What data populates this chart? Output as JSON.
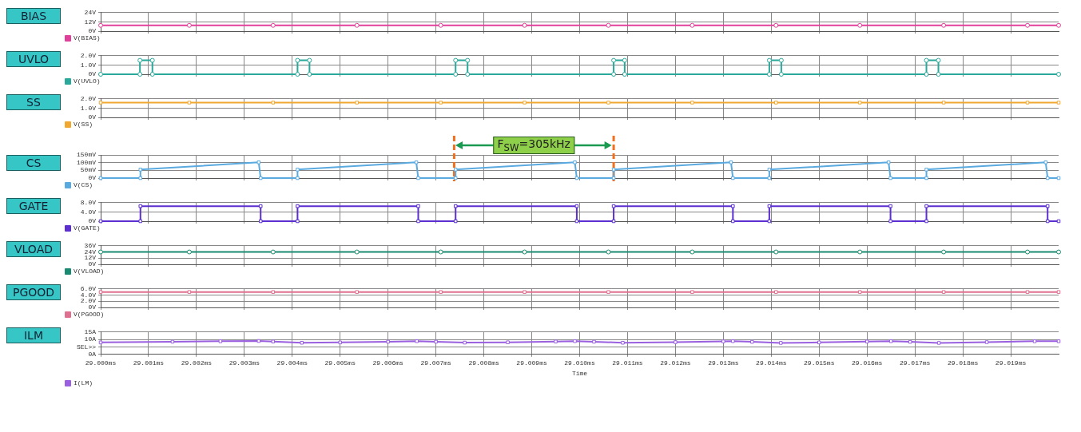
{
  "chart_data": [
    {
      "type": "line",
      "title": "BIAS",
      "legend": "bottom left",
      "grid": true,
      "tick_labels": "y",
      "marker": "circle",
      "xlim": [
        29,
        29.02
      ],
      "xticks": [
        29,
        29.001,
        29.002,
        29.003,
        29.004,
        29.005,
        29.006,
        29.007,
        29.008,
        29.009,
        29.01,
        29.011,
        29.012,
        29.013,
        29.014,
        29.015,
        29.016,
        29.017,
        29.018,
        29.019
      ],
      "ylim": [
        0,
        24
      ],
      "yticks": [
        {
          "value": 0,
          "label": "0V"
        },
        {
          "value": 12,
          "label": "12V"
        },
        {
          "value": 24,
          "label": "24V"
        }
      ],
      "x": [
        29,
        29.00185,
        29.0036,
        29.00535,
        29.0071,
        29.00885,
        29.0106,
        29.01235,
        29.0141,
        29.01585,
        29.0176,
        29.01935,
        29.02
      ],
      "series": [
        {
          "name": "V(BIAS)",
          "color": "#e0409a",
          "values": [
            7.5,
            7.5,
            7.5,
            7.5,
            7.5,
            7.5,
            7.5,
            7.5,
            7.5,
            7.5,
            7.5,
            7.5,
            7.5
          ]
        }
      ]
    },
    {
      "type": "line",
      "title": "UVLO",
      "legend": "bottom left",
      "grid": true,
      "tick_labels": "y",
      "marker": "circle",
      "xlim": [
        29,
        29.02
      ],
      "xticks": [
        29,
        29.001,
        29.002,
        29.003,
        29.004,
        29.005,
        29.006,
        29.007,
        29.008,
        29.009,
        29.01,
        29.011,
        29.012,
        29.013,
        29.014,
        29.015,
        29.016,
        29.017,
        29.018,
        29.019
      ],
      "ylim": [
        0,
        2
      ],
      "yticks": [
        {
          "value": 0,
          "label": "0V"
        },
        {
          "value": 1,
          "label": "1.0V"
        },
        {
          "value": 2,
          "label": "2.0V"
        }
      ],
      "x": [
        29,
        29.00082,
        29.00082,
        29.00108,
        29.00108,
        29.00411,
        29.00411,
        29.00436,
        29.00436,
        29.00741,
        29.00741,
        29.00766,
        29.00766,
        29.01071,
        29.01071,
        29.01094,
        29.01094,
        29.01396,
        29.01396,
        29.01421,
        29.01421,
        29.01724,
        29.01724,
        29.01749,
        29.01749,
        29.02
      ],
      "series": [
        {
          "name": "V(UVLO)",
          "color": "#2aa89a",
          "values": [
            0,
            0,
            1.5,
            1.5,
            0,
            0,
            1.5,
            1.5,
            0,
            0,
            1.5,
            1.5,
            0,
            0,
            1.5,
            1.5,
            0,
            0,
            1.5,
            1.5,
            0,
            0,
            1.5,
            1.5,
            0,
            0
          ]
        }
      ]
    },
    {
      "type": "line",
      "title": "SS",
      "legend": "bottom left",
      "grid": true,
      "tick_labels": "y",
      "marker": "square",
      "xlim": [
        29,
        29.02
      ],
      "xticks": [
        29,
        29.001,
        29.002,
        29.003,
        29.004,
        29.005,
        29.006,
        29.007,
        29.008,
        29.009,
        29.01,
        29.011,
        29.012,
        29.013,
        29.014,
        29.015,
        29.016,
        29.017,
        29.018,
        29.019
      ],
      "ylim": [
        0,
        2
      ],
      "yticks": [
        {
          "value": 0,
          "label": "0V"
        },
        {
          "value": 1,
          "label": "1.0V"
        },
        {
          "value": 2,
          "label": "2.0V"
        }
      ],
      "x": [
        29,
        29.00185,
        29.0036,
        29.00535,
        29.0071,
        29.00885,
        29.0106,
        29.01235,
        29.0141,
        29.01585,
        29.0176,
        29.01935,
        29.02
      ],
      "series": [
        {
          "name": "V(SS)",
          "color": "#f0a830",
          "values": [
            1.6,
            1.6,
            1.6,
            1.6,
            1.6,
            1.6,
            1.6,
            1.6,
            1.6,
            1.6,
            1.6,
            1.6,
            1.6
          ]
        }
      ]
    },
    {
      "type": "line",
      "title": "CS",
      "legend": "bottom left",
      "grid": true,
      "tick_labels": "y",
      "marker": "square",
      "xlim": [
        29,
        29.02
      ],
      "xticks": [
        29,
        29.001,
        29.002,
        29.003,
        29.004,
        29.005,
        29.006,
        29.007,
        29.008,
        29.009,
        29.01,
        29.011,
        29.012,
        29.013,
        29.014,
        29.015,
        29.016,
        29.017,
        29.018,
        29.019
      ],
      "ylim": [
        0,
        150
      ],
      "yticks": [
        {
          "value": 0,
          "label": "0V"
        },
        {
          "value": 50,
          "label": "50mV"
        },
        {
          "value": 100,
          "label": "100mV"
        },
        {
          "value": 150,
          "label": "150mV"
        }
      ],
      "x": [
        29,
        29.00083,
        29.00083,
        29.0033,
        29.00334,
        29.00411,
        29.00411,
        29.00659,
        29.00663,
        29.00741,
        29.00741,
        29.0099,
        29.00994,
        29.01071,
        29.01071,
        29.01316,
        29.0132,
        29.01396,
        29.01396,
        29.01645,
        29.01649,
        29.01724,
        29.01724,
        29.01973,
        29.01977,
        29.02
      ],
      "series": [
        {
          "name": "V(CS)",
          "color": "#5aaae0",
          "values": [
            0,
            0,
            55,
            102,
            0,
            0,
            55,
            102,
            0,
            0,
            55,
            102,
            0,
            0,
            55,
            102,
            0,
            0,
            55,
            102,
            0,
            0,
            55,
            102,
            0,
            0
          ]
        }
      ],
      "ref_lines": [
        {
          "axis": "x",
          "value": 29.00738,
          "color": "#f07020",
          "line_style": "dashed"
        },
        {
          "axis": "x",
          "value": 29.01071,
          "color": "#f07020",
          "line_style": "dashed"
        }
      ],
      "annotations": [
        "F$_{SW}$=305kHz"
      ]
    },
    {
      "type": "line",
      "title": "GATE",
      "legend": "bottom left",
      "grid": true,
      "tick_labels": "y",
      "marker": "square",
      "xlim": [
        29,
        29.02
      ],
      "xticks": [
        29,
        29.001,
        29.002,
        29.003,
        29.004,
        29.005,
        29.006,
        29.007,
        29.008,
        29.009,
        29.01,
        29.011,
        29.012,
        29.013,
        29.014,
        29.015,
        29.016,
        29.017,
        29.018,
        29.019
      ],
      "ylim": [
        0,
        8
      ],
      "yticks": [
        {
          "value": 0,
          "label": "0V"
        },
        {
          "value": 4,
          "label": "4.0V"
        },
        {
          "value": 8,
          "label": "8.0V"
        }
      ],
      "x": [
        29,
        29.00083,
        29.00083,
        29.00334,
        29.00334,
        29.00411,
        29.00411,
        29.00663,
        29.00663,
        29.00741,
        29.00741,
        29.00994,
        29.00994,
        29.01071,
        29.01071,
        29.0132,
        29.0132,
        29.01396,
        29.01396,
        29.01649,
        29.01649,
        29.01724,
        29.01724,
        29.01977,
        29.01977,
        29.02
      ],
      "series": [
        {
          "name": "V(GATE)",
          "color": "#5b2fd0",
          "values": [
            0,
            0,
            6.5,
            6.5,
            0,
            0,
            6.5,
            6.5,
            0,
            0,
            6.5,
            6.5,
            0,
            0,
            6.5,
            6.5,
            0,
            0,
            6.5,
            6.5,
            0,
            0,
            6.5,
            6.5,
            0,
            0
          ]
        }
      ]
    },
    {
      "type": "line",
      "title": "VLOAD",
      "legend": "bottom left",
      "grid": true,
      "tick_labels": "y",
      "marker": "circle",
      "xlim": [
        29,
        29.02
      ],
      "xticks": [
        29,
        29.001,
        29.002,
        29.003,
        29.004,
        29.005,
        29.006,
        29.007,
        29.008,
        29.009,
        29.01,
        29.011,
        29.012,
        29.013,
        29.014,
        29.015,
        29.016,
        29.017,
        29.018,
        29.019
      ],
      "ylim": [
        0,
        36
      ],
      "yticks": [
        {
          "value": 0,
          "label": "0V"
        },
        {
          "value": 12,
          "label": "12V"
        },
        {
          "value": 24,
          "label": "24V"
        },
        {
          "value": 36,
          "label": "36V"
        }
      ],
      "x": [
        29,
        29.00185,
        29.0036,
        29.00535,
        29.0071,
        29.00885,
        29.0106,
        29.01235,
        29.0141,
        29.01585,
        29.0176,
        29.01935,
        29.02
      ],
      "series": [
        {
          "name": "V(VLOAD)",
          "color": "#1a8a70",
          "values": [
            24,
            24,
            24,
            24,
            24,
            24,
            24,
            24,
            24,
            24,
            24,
            24,
            24
          ]
        }
      ]
    },
    {
      "type": "line",
      "title": "PGOOD",
      "legend": "bottom left",
      "grid": true,
      "tick_labels": "y",
      "marker": "square",
      "xlim": [
        29,
        29.02
      ],
      "xticks": [
        29,
        29.001,
        29.002,
        29.003,
        29.004,
        29.005,
        29.006,
        29.007,
        29.008,
        29.009,
        29.01,
        29.011,
        29.012,
        29.013,
        29.014,
        29.015,
        29.016,
        29.017,
        29.018,
        29.019
      ],
      "ylim": [
        0,
        6
      ],
      "yticks": [
        {
          "value": 0,
          "label": "0V"
        },
        {
          "value": 2,
          "label": "2.0V"
        },
        {
          "value": 4,
          "label": "4.0V"
        },
        {
          "value": 6,
          "label": "6.0V"
        }
      ],
      "x": [
        29,
        29.00185,
        29.0036,
        29.00535,
        29.0071,
        29.00885,
        29.0106,
        29.01235,
        29.0141,
        29.01585,
        29.0176,
        29.01935,
        29.02
      ],
      "series": [
        {
          "name": "V(PGOOD)",
          "color": "#e07090",
          "values": [
            5,
            5,
            5,
            5,
            5,
            5,
            5,
            5,
            5,
            5,
            5,
            5,
            5
          ]
        }
      ]
    },
    {
      "type": "line",
      "title": "ILM",
      "legend": "bottom left",
      "grid": true,
      "marker": "square",
      "xlabel": "Time",
      "xlim": [
        29,
        29.02
      ],
      "xticks": [
        {
          "value": 29,
          "label": "29.000ms"
        },
        {
          "value": 29.001,
          "label": "29.001ms"
        },
        {
          "value": 29.002,
          "label": "29.002ms"
        },
        {
          "value": 29.003,
          "label": "29.003ms"
        },
        {
          "value": 29.004,
          "label": "29.004ms"
        },
        {
          "value": 29.005,
          "label": "29.005ms"
        },
        {
          "value": 29.006,
          "label": "29.006ms"
        },
        {
          "value": 29.007,
          "label": "29.007ms"
        },
        {
          "value": 29.008,
          "label": "29.008ms"
        },
        {
          "value": 29.009,
          "label": "29.009ms"
        },
        {
          "value": 29.01,
          "label": "29.010ms"
        },
        {
          "value": 29.011,
          "label": "29.011ms"
        },
        {
          "value": 29.012,
          "label": "29.012ms"
        },
        {
          "value": 29.013,
          "label": "29.013ms"
        },
        {
          "value": 29.014,
          "label": "29.014ms"
        },
        {
          "value": 29.015,
          "label": "29.015ms"
        },
        {
          "value": 29.016,
          "label": "29.016ms"
        },
        {
          "value": 29.017,
          "label": "29.017ms"
        },
        {
          "value": 29.018,
          "label": "29.018ms"
        },
        {
          "value": 29.019,
          "label": "29.019ms"
        }
      ],
      "ylim": [
        0,
        15
      ],
      "yticks": [
        {
          "value": 0,
          "label": "0A"
        },
        {
          "value": 5,
          "label": "SEL>>"
        },
        {
          "value": 10,
          "label": "10A"
        },
        {
          "value": 15,
          "label": "15A"
        }
      ],
      "x": [
        29,
        29.0015,
        29.0025,
        29.0033,
        29.0036,
        29.0042,
        29.005,
        29.006,
        29.0066,
        29.007,
        29.0076,
        29.0085,
        29.0095,
        29.0099,
        29.0103,
        29.0109,
        29.012,
        29.013,
        29.0132,
        29.0136,
        29.0142,
        29.015,
        29.016,
        29.0165,
        29.0169,
        29.0175,
        29.0185,
        29.0195,
        29.02
      ],
      "series": [
        {
          "name": "I(LM)",
          "color": "#9a60e0",
          "values": [
            8,
            8.5,
            8.8,
            9,
            8.6,
            7.8,
            8,
            8.5,
            8.9,
            8.5,
            7.9,
            8.1,
            8.6,
            8.9,
            8.5,
            7.8,
            8.2,
            8.7,
            8.9,
            8.4,
            7.7,
            8,
            8.6,
            8.9,
            8.4,
            7.7,
            8.2,
            8.8,
            8.8
          ]
        }
      ]
    }
  ]
}
